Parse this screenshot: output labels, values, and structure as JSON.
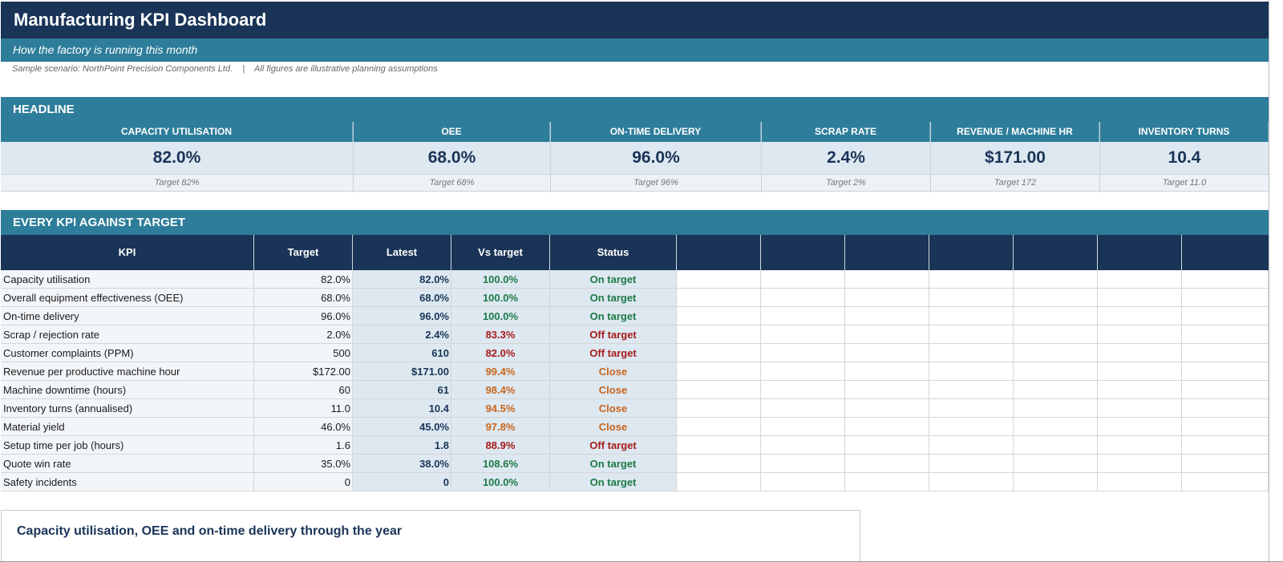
{
  "title": "Manufacturing KPI Dashboard",
  "subtitle": "How the factory is running this month",
  "scenario": "Sample scenario: NorthPoint Precision Components Ltd.    |    All figures are illustrative planning assumptions",
  "headline": {
    "section_label": "HEADLINE",
    "tiles": [
      {
        "label": "CAPACITY UTILISATION",
        "value": "82.0%",
        "target": "Target 82%"
      },
      {
        "label": "OEE",
        "value": "68.0%",
        "target": "Target 68%"
      },
      {
        "label": "ON-TIME DELIVERY",
        "value": "96.0%",
        "target": "Target 96%"
      },
      {
        "label": "SCRAP RATE",
        "value": "2.4%",
        "target": "Target 2%"
      },
      {
        "label": "REVENUE / MACHINE HR",
        "value": "$171.00",
        "target": "Target 172"
      },
      {
        "label": "INVENTORY TURNS",
        "value": "10.4",
        "target": "Target 11.0"
      }
    ]
  },
  "kpi_table": {
    "section_label": "EVERY KPI AGAINST TARGET",
    "headers": {
      "kpi": "KPI",
      "target": "Target",
      "latest": "Latest",
      "vs": "Vs target",
      "status": "Status"
    },
    "rows": [
      {
        "kpi": "Capacity utilisation",
        "target": "82.0%",
        "latest": "82.0%",
        "vs": "100.0%",
        "status": "On target",
        "tone": "good"
      },
      {
        "kpi": "Overall equipment effectiveness (OEE)",
        "target": "68.0%",
        "latest": "68.0%",
        "vs": "100.0%",
        "status": "On target",
        "tone": "good"
      },
      {
        "kpi": "On-time delivery",
        "target": "96.0%",
        "latest": "96.0%",
        "vs": "100.0%",
        "status": "On target",
        "tone": "good"
      },
      {
        "kpi": "Scrap / rejection rate",
        "target": "2.0%",
        "latest": "2.4%",
        "vs": "83.3%",
        "status": "Off target",
        "tone": "bad"
      },
      {
        "kpi": "Customer complaints (PPM)",
        "target": "500",
        "latest": "610",
        "vs": "82.0%",
        "status": "Off target",
        "tone": "bad"
      },
      {
        "kpi": "Revenue per productive machine hour",
        "target": "$172.00",
        "latest": "$171.00",
        "vs": "99.4%",
        "status": "Close",
        "tone": "warn"
      },
      {
        "kpi": "Machine downtime (hours)",
        "target": "60",
        "latest": "61",
        "vs": "98.4%",
        "status": "Close",
        "tone": "warn"
      },
      {
        "kpi": "Inventory turns (annualised)",
        "target": "11.0",
        "latest": "10.4",
        "vs": "94.5%",
        "status": "Close",
        "tone": "warn"
      },
      {
        "kpi": "Material yield",
        "target": "46.0%",
        "latest": "45.0%",
        "vs": "97.8%",
        "status": "Close",
        "tone": "warn"
      },
      {
        "kpi": "Setup time per job (hours)",
        "target": "1.6",
        "latest": "1.8",
        "vs": "88.9%",
        "status": "Off target",
        "tone": "bad"
      },
      {
        "kpi": "Quote win rate",
        "target": "35.0%",
        "latest": "38.0%",
        "vs": "108.6%",
        "status": "On target",
        "tone": "good"
      },
      {
        "kpi": "Safety incidents",
        "target": "0",
        "latest": "0",
        "vs": "100.0%",
        "status": "On target",
        "tone": "good"
      }
    ]
  },
  "chart": {
    "title": "Capacity utilisation, OEE and on-time delivery through the year"
  },
  "colors": {
    "navy": "#1a3457",
    "teal": "#2e7d9a",
    "good": "#1e7a46",
    "bad": "#a61c1c",
    "warn": "#c8651b"
  }
}
